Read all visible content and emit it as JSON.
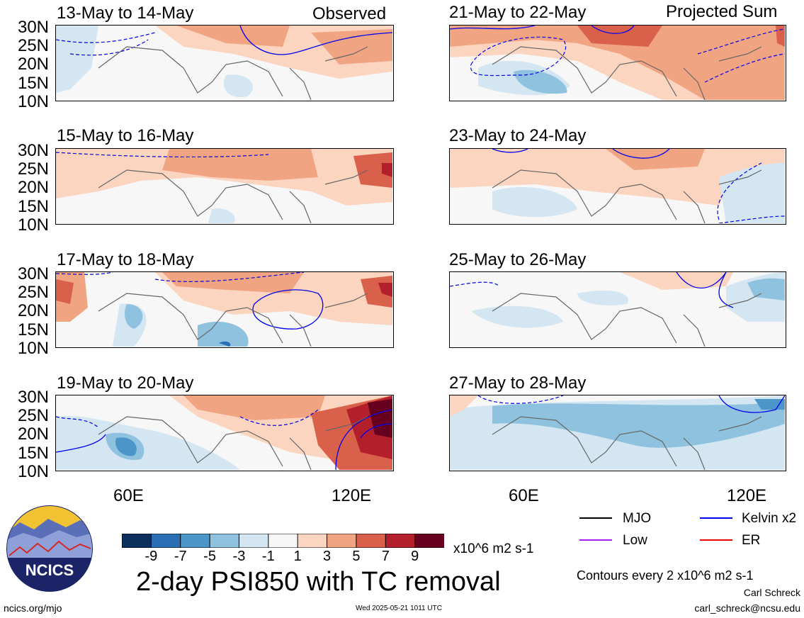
{
  "headers": {
    "observed": "Observed",
    "projected": "Projected Sum"
  },
  "panels": [
    {
      "title": "13-May to 14-May"
    },
    {
      "title": "15-May to 16-May"
    },
    {
      "title": "17-May to 18-May"
    },
    {
      "title": "19-May to 20-May"
    },
    {
      "title": "21-May to 22-May"
    },
    {
      "title": "23-May to 24-May"
    },
    {
      "title": "25-May to 26-May"
    },
    {
      "title": "27-May to 28-May"
    }
  ],
  "lat_labels": [
    "30N",
    "25N",
    "20N",
    "15N",
    "10N"
  ],
  "lon_labels": {
    "left": [
      "60E",
      "120E"
    ],
    "right": [
      "60E",
      "120E"
    ]
  },
  "colorbar": {
    "labels": [
      "-9",
      "-7",
      "-5",
      "-3",
      "-1",
      "1",
      "3",
      "5",
      "7",
      "9"
    ],
    "colors": [
      "#0d2f5e",
      "#2a6fb3",
      "#4b95c8",
      "#8fc2de",
      "#d3e6f2",
      "#f7f7f7",
      "#fbd5c0",
      "#f1a482",
      "#d9614b",
      "#b41f2c",
      "#67001f"
    ],
    "units": "x10^6 m2 s-1"
  },
  "main_title": "2-day PSI850 with TC removal",
  "legend": {
    "items": [
      {
        "label": "MJO",
        "color": "#000000"
      },
      {
        "label": "Kelvin x2",
        "color": "#0000ee"
      },
      {
        "label": "Low",
        "color": "#a020f0"
      },
      {
        "label": "ER",
        "color": "#ee0000"
      }
    ],
    "contours_note": "Contours every 2 x10^6 m2 s-1"
  },
  "author": {
    "name": "Carl Schreck",
    "email": "carl_schreck@ncsu.edu"
  },
  "site": "ncics.org/mjo",
  "timestamp": "Wed 2025-05-21 1011 UTC",
  "logo_text": "NCICS"
}
